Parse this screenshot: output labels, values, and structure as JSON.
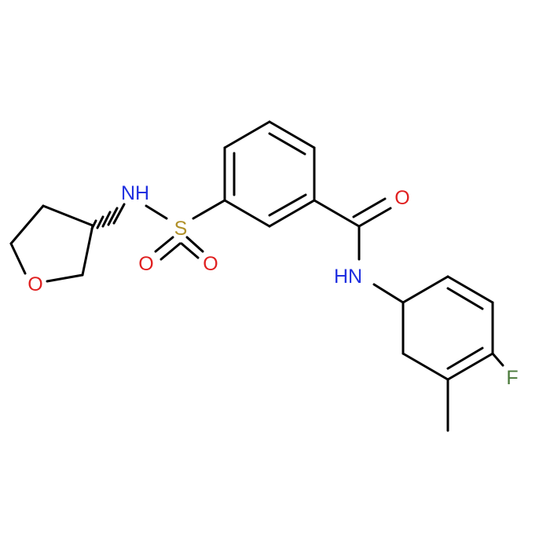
{
  "atoms": [
    {
      "label": "NH"
    },
    {
      "label": "S"
    },
    {
      "label": "O"
    },
    {
      "label": "O"
    },
    {
      "label": "O"
    },
    {
      "label": "O"
    },
    {
      "label": "HN"
    },
    {
      "label": "F"
    }
  ]
}
